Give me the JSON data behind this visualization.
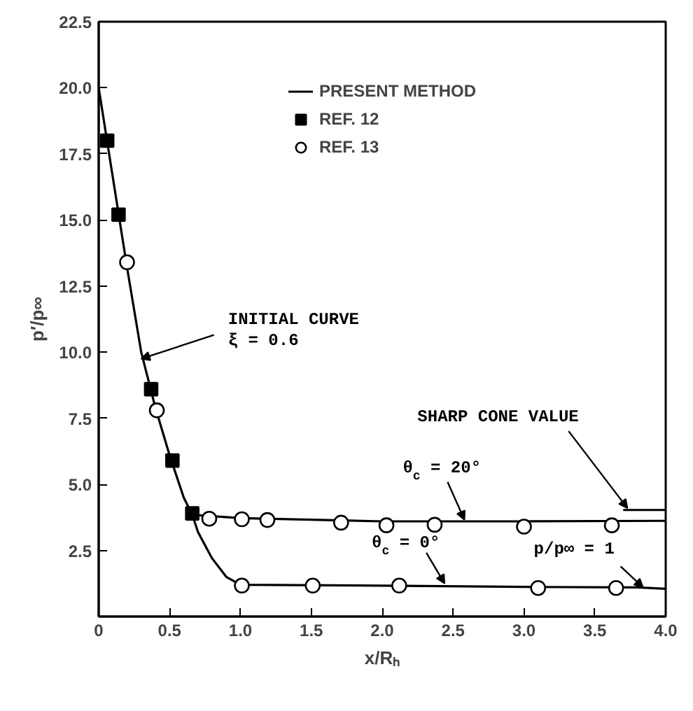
{
  "chart_data": {
    "type": "line",
    "xlabel": "x/Rₕ",
    "ylabel": "p′/p∞",
    "xlim": [
      0,
      4.0
    ],
    "ylim": [
      0,
      22.5
    ],
    "xticks": [
      0,
      {
        "value": 0.5,
        "label": "0.5"
      },
      {
        "value": 1.0,
        "label": "1.0"
      },
      {
        "value": 1.5,
        "label": "1.5"
      },
      {
        "value": 2.0,
        "label": "2.0"
      },
      {
        "value": 2.5,
        "label": "2.5"
      },
      {
        "value": 3.0,
        "label": "3.0"
      },
      {
        "value": 3.5,
        "label": "3.5"
      },
      {
        "value": 4.0,
        "label": "4.0"
      }
    ],
    "yticks": [
      {
        "value": 2.5,
        "label": "2.5"
      },
      {
        "value": 5.0,
        "label": "5.0"
      },
      {
        "value": 7.5,
        "label": "7.5"
      },
      {
        "value": 10.0,
        "label": "10.0"
      },
      {
        "value": 12.5,
        "label": "12.5"
      },
      {
        "value": 15.0,
        "label": "15.0"
      },
      {
        "value": 17.5,
        "label": "17.5"
      },
      {
        "value": 20.0,
        "label": "20.0"
      },
      {
        "value": 22.5,
        "label": "22.5"
      }
    ],
    "grid": false,
    "legend": "top",
    "series": [
      {
        "name": "PRESENT METHOD",
        "type": "line",
        "color": "#000000",
        "marker": "none",
        "x": [
          0,
          0.1,
          0.2,
          0.3,
          0.4,
          0.5,
          0.6,
          0.66,
          1.0,
          2.0,
          3.0,
          4.0
        ],
        "values": [
          20.0,
          16.6,
          13.2,
          10.0,
          7.9,
          6.1,
          4.5,
          3.85,
          3.72,
          3.6,
          3.6,
          3.62
        ]
      },
      {
        "type": "line",
        "color": "#000000",
        "marker": "none",
        "x": [
          0.66,
          0.7,
          0.8,
          0.9,
          1.0,
          2.0,
          3.0,
          3.8,
          4.0
        ],
        "values": [
          3.85,
          3.2,
          2.2,
          1.5,
          1.2,
          1.17,
          1.12,
          1.1,
          1.05
        ]
      },
      {
        "type": "line",
        "color": "#000000",
        "marker": "none",
        "x": [
          3.7,
          4.0
        ],
        "values": [
          4.03,
          4.03
        ]
      },
      {
        "name": "REF. 12",
        "type": "scatter",
        "color": "#000000",
        "marker": "square",
        "x": [
          0.06,
          0.14,
          0.37,
          0.52,
          0.66
        ],
        "values": [
          18.0,
          15.2,
          8.6,
          5.9,
          3.9
        ]
      },
      {
        "name": "REF. 13",
        "type": "scatter",
        "color": "#ffffff",
        "marker": "circle",
        "x": [
          0.2,
          0.41,
          0.78,
          1.01,
          1.19,
          1.71,
          2.03,
          2.37,
          3.0,
          3.62,
          1.01,
          1.51,
          2.12,
          3.1,
          3.65
        ],
        "values": [
          13.4,
          7.8,
          3.7,
          3.68,
          3.65,
          3.55,
          3.45,
          3.47,
          3.4,
          3.45,
          1.17,
          1.17,
          1.17,
          1.08,
          1.08
        ]
      }
    ],
    "annotations": [
      {
        "text": "INITIAL CURVE\nξ = 0.6",
        "x": 0.3,
        "y": 9.75
      },
      {
        "text": "SHARP CONE VALUE",
        "x": 3.73,
        "y": 4.1
      },
      {
        "text": "θ$_{c}$ = 20°",
        "x": 2.58,
        "y": 3.66
      },
      {
        "text": "θ$_{c}$ = 0°",
        "x": 2.44,
        "y": 1.25
      },
      {
        "text": "p/p∞ = 1",
        "x": 3.84,
        "y": 1.1
      }
    ]
  }
}
